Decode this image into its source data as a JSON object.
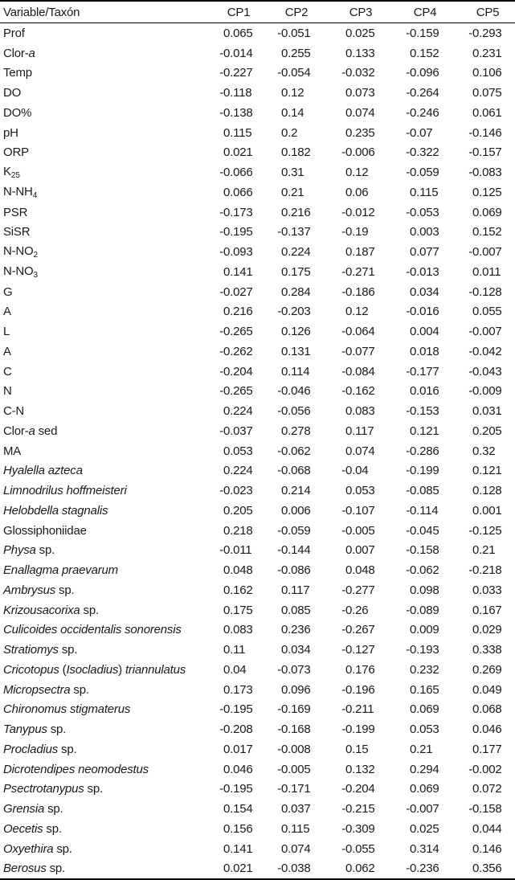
{
  "colors": {
    "text": "#1a1a1a",
    "border": "#000000",
    "background": "#ffffff"
  },
  "table": {
    "header": {
      "variable_label": "Variable/Taxón",
      "columns": [
        "CP1",
        "CP2",
        "CP3",
        "CP4",
        "CP5"
      ]
    },
    "rows": [
      {
        "label": [
          {
            "t": "Prof"
          }
        ],
        "values": [
          "0.065",
          "-0.051",
          "0.025",
          "-0.159",
          "-0.293"
        ]
      },
      {
        "label": [
          {
            "t": "Clor-"
          },
          {
            "t": "a",
            "s": "i"
          }
        ],
        "values": [
          "-0.014",
          "0.255",
          "0.133",
          "0.152",
          "0.231"
        ]
      },
      {
        "label": [
          {
            "t": "Temp"
          }
        ],
        "values": [
          "-0.227",
          "-0.054",
          "-0.032",
          "-0.096",
          "0.106"
        ]
      },
      {
        "label": [
          {
            "t": "DO"
          }
        ],
        "values": [
          "-0.118",
          "0.12",
          "0.073",
          "-0.264",
          "0.075"
        ]
      },
      {
        "label": [
          {
            "t": "DO%"
          }
        ],
        "values": [
          "-0.138",
          "0.14",
          "0.074",
          "-0.246",
          "0.061"
        ]
      },
      {
        "label": [
          {
            "t": "pH"
          }
        ],
        "values": [
          "0.115",
          "0.2",
          "0.235",
          "-0.07",
          "-0.146"
        ]
      },
      {
        "label": [
          {
            "t": "ORP"
          }
        ],
        "values": [
          "0.021",
          "0.182",
          "-0.006",
          "-0.322",
          "-0.157"
        ]
      },
      {
        "label": [
          {
            "t": "K"
          },
          {
            "t": "25",
            "s": "sub"
          }
        ],
        "values": [
          "-0.066",
          "0.31",
          "0.12",
          "-0.059",
          "-0.083"
        ]
      },
      {
        "label": [
          {
            "t": "N-NH"
          },
          {
            "t": "4",
            "s": "sub"
          }
        ],
        "values": [
          "0.066",
          "0.21",
          "0.06",
          "0.115",
          "0.125"
        ]
      },
      {
        "label": [
          {
            "t": "PSR"
          }
        ],
        "values": [
          "-0.173",
          "0.216",
          "-0.012",
          "-0.053",
          "0.069"
        ]
      },
      {
        "label": [
          {
            "t": "SiSR"
          }
        ],
        "values": [
          "-0.195",
          "-0.137",
          "-0.19",
          "0.003",
          "0.152"
        ]
      },
      {
        "label": [
          {
            "t": "N-NO"
          },
          {
            "t": "2",
            "s": "sub"
          }
        ],
        "values": [
          "-0.093",
          "0.224",
          "0.187",
          "0.077",
          "-0.007"
        ]
      },
      {
        "label": [
          {
            "t": "N-NO"
          },
          {
            "t": "3",
            "s": "sub"
          }
        ],
        "values": [
          "0.141",
          "0.175",
          "-0.271",
          "-0.013",
          "0.011"
        ]
      },
      {
        "label": [
          {
            "t": "G"
          }
        ],
        "values": [
          "-0.027",
          "0.284",
          "-0.186",
          "0.034",
          "-0.128"
        ]
      },
      {
        "label": [
          {
            "t": "A"
          }
        ],
        "values": [
          "0.216",
          "-0.203",
          "0.12",
          "-0.016",
          "0.055"
        ]
      },
      {
        "label": [
          {
            "t": "L"
          }
        ],
        "values": [
          "-0.265",
          "0.126",
          "-0.064",
          "0.004",
          "-0.007"
        ]
      },
      {
        "label": [
          {
            "t": "A"
          }
        ],
        "values": [
          "-0.262",
          "0.131",
          "-0.077",
          "0.018",
          "-0.042"
        ]
      },
      {
        "label": [
          {
            "t": "C"
          }
        ],
        "values": [
          "-0.204",
          "0.114",
          "-0.084",
          "-0.177",
          "-0.043"
        ]
      },
      {
        "label": [
          {
            "t": "N"
          }
        ],
        "values": [
          "-0.265",
          "-0.046",
          "-0.162",
          "0.016",
          "-0.009"
        ]
      },
      {
        "label": [
          {
            "t": "C-N"
          }
        ],
        "values": [
          "0.224",
          "-0.056",
          "0.083",
          "-0.153",
          "0.031"
        ]
      },
      {
        "label": [
          {
            "t": "Clor-"
          },
          {
            "t": "a",
            "s": "i"
          },
          {
            "t": " sed"
          }
        ],
        "values": [
          "-0.037",
          "0.278",
          "0.117",
          "0.121",
          "0.205"
        ]
      },
      {
        "label": [
          {
            "t": "MA"
          }
        ],
        "values": [
          "0.053",
          "-0.062",
          "0.074",
          "-0.286",
          "0.32"
        ]
      },
      {
        "label": [
          {
            "t": "Hyalella azteca",
            "s": "i"
          }
        ],
        "values": [
          "0.224",
          "-0.068",
          "-0.04",
          "-0.199",
          "0.121"
        ]
      },
      {
        "label": [
          {
            "t": "Limnodrilus hoffmeisteri",
            "s": "i"
          }
        ],
        "values": [
          "-0.023",
          "0.214",
          "0.053",
          "-0.085",
          "0.128"
        ]
      },
      {
        "label": [
          {
            "t": "Helobdella stagnalis",
            "s": "i"
          }
        ],
        "values": [
          "0.205",
          "0.006",
          "-0.107",
          "-0.114",
          "0.001"
        ]
      },
      {
        "label": [
          {
            "t": "Glossiphoniidae"
          }
        ],
        "values": [
          "0.218",
          "-0.059",
          "-0.005",
          "-0.045",
          "-0.125"
        ]
      },
      {
        "label": [
          {
            "t": "Physa",
            "s": "i"
          },
          {
            "t": " sp."
          }
        ],
        "values": [
          "-0.011",
          "-0.144",
          "0.007",
          "-0.158",
          "0.21"
        ]
      },
      {
        "label": [
          {
            "t": "Enallagma praevarum",
            "s": "i"
          }
        ],
        "values": [
          "0.048",
          "-0.086",
          "0.048",
          "-0.062",
          "-0.218"
        ]
      },
      {
        "label": [
          {
            "t": "Ambrysus",
            "s": "i"
          },
          {
            "t": " sp."
          }
        ],
        "values": [
          "0.162",
          "0.117",
          "-0.277",
          "0.098",
          "0.033"
        ]
      },
      {
        "label": [
          {
            "t": "Krizousacorixa",
            "s": "i"
          },
          {
            "t": " sp."
          }
        ],
        "values": [
          "0.175",
          "0.085",
          "-0.26",
          "-0.089",
          "0.167"
        ]
      },
      {
        "label": [
          {
            "t": "Culicoides occidentalis sonorensis",
            "s": "i"
          }
        ],
        "values": [
          "0.083",
          "0.236",
          "-0.267",
          "0.009",
          "0.029"
        ]
      },
      {
        "label": [
          {
            "t": "Stratiomys",
            "s": "i"
          },
          {
            "t": " sp."
          }
        ],
        "values": [
          "0.11",
          "0.034",
          "-0.127",
          "-0.193",
          "0.338"
        ]
      },
      {
        "label": [
          {
            "t": "Cricotopus ",
            "s": "i"
          },
          {
            "t": "("
          },
          {
            "t": "Isocladius",
            "s": "i"
          },
          {
            "t": ") "
          },
          {
            "t": "triannulatus",
            "s": "i"
          }
        ],
        "values": [
          "0.04",
          "-0.073",
          "0.176",
          "0.232",
          "0.269"
        ]
      },
      {
        "label": [
          {
            "t": "Micropsectra",
            "s": "i"
          },
          {
            "t": " sp."
          }
        ],
        "values": [
          "0.173",
          "0.096",
          "-0.196",
          "0.165",
          "0.049"
        ]
      },
      {
        "label": [
          {
            "t": "Chironomus stigmaterus",
            "s": "i"
          }
        ],
        "values": [
          "-0.195",
          "-0.169",
          "-0.211",
          "0.069",
          "0.068"
        ]
      },
      {
        "label": [
          {
            "t": "Tanypus",
            "s": "i"
          },
          {
            "t": " sp."
          }
        ],
        "values": [
          "-0.208",
          "-0.168",
          "-0.199",
          "0.053",
          "0.046"
        ]
      },
      {
        "label": [
          {
            "t": "Procladius",
            "s": "i"
          },
          {
            "t": " sp."
          }
        ],
        "values": [
          "0.017",
          "-0.008",
          "0.15",
          "0.21",
          "0.177"
        ]
      },
      {
        "label": [
          {
            "t": "Dicrotendipes neomodestus",
            "s": "i"
          }
        ],
        "values": [
          "0.046",
          "-0.005",
          "0.132",
          "0.294",
          "-0.002"
        ]
      },
      {
        "label": [
          {
            "t": "Psectrotanypus",
            "s": "i"
          },
          {
            "t": " sp."
          }
        ],
        "values": [
          "-0.195",
          "-0.171",
          "-0.204",
          "0.069",
          "0.072"
        ]
      },
      {
        "label": [
          {
            "t": "Grensia",
            "s": "i"
          },
          {
            "t": " sp."
          }
        ],
        "values": [
          "0.154",
          "0.037",
          "-0.215",
          "-0.007",
          "-0.158"
        ]
      },
      {
        "label": [
          {
            "t": "Oecetis",
            "s": "i"
          },
          {
            "t": " sp."
          }
        ],
        "values": [
          "0.156",
          "0.115",
          "-0.309",
          "0.025",
          "0.044"
        ]
      },
      {
        "label": [
          {
            "t": "Oxyethira",
            "s": "i"
          },
          {
            "t": " sp."
          }
        ],
        "values": [
          "0.141",
          "0.074",
          "-0.055",
          "0.314",
          "0.146"
        ]
      },
      {
        "label": [
          {
            "t": "Berosus",
            "s": "i"
          },
          {
            "t": " sp."
          }
        ],
        "values": [
          "0.021",
          "-0.038",
          "0.062",
          "-0.236",
          "0.356"
        ]
      }
    ]
  }
}
